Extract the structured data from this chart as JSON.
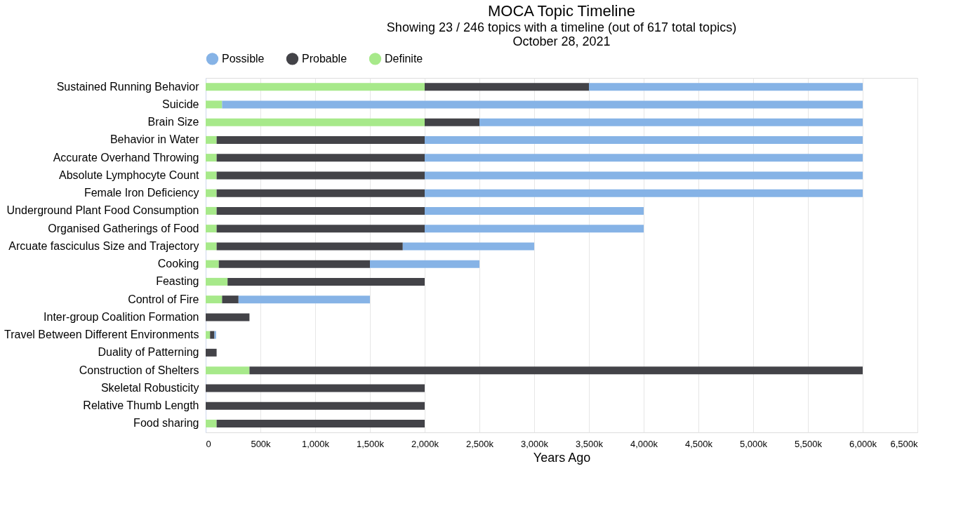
{
  "chart_data": {
    "type": "bar",
    "orientation": "horizontal",
    "stacked": true,
    "title": "MOCA Topic Timeline",
    "subtitle": "Showing 23 / 246 topics with a timeline (out of 617 total topics)\nOctober 28, 2021",
    "xlabel": "Years Ago",
    "categories": [
      "Sustained Running Behavior",
      "Suicide",
      "Brain Size",
      "Behavior in Water",
      "Accurate Overhand Throwing",
      "Absolute Lymphocyte Count",
      "Female Iron Deficiency",
      "Underground Plant Food Consumption",
      "Organised Gatherings of Food",
      "Arcuate fasciculus Size and Trajectory",
      "Cooking",
      "Feasting",
      "Control of Fire",
      "Inter-group Coalition Formation",
      "Travel Between Different Environments",
      "Duality of Patterning",
      "Construction of Shelters",
      "Skeletal Robusticity",
      "Relative Thumb Length",
      "Food sharing"
    ],
    "series": [
      {
        "name": "Definite",
        "color": "#a7e98a",
        "values": [
          2000000,
          150000,
          2000000,
          100000,
          100000,
          100000,
          100000,
          100000,
          100000,
          100000,
          120000,
          200000,
          150000,
          null,
          40000,
          null,
          400000,
          null,
          null,
          100000
        ]
      },
      {
        "name": "Probable",
        "color": "#434348",
        "values": [
          1500000,
          null,
          500000,
          1900000,
          1900000,
          1900000,
          1900000,
          1900000,
          1900000,
          1700000,
          1380000,
          1800000,
          150000,
          400000,
          40000,
          100000,
          5600000,
          2000000,
          2000000,
          1900000
        ]
      },
      {
        "name": "Possible",
        "color": "#86b3e6",
        "values": [
          2500000,
          5850000,
          3500000,
          4000000,
          4000000,
          4000000,
          4000000,
          2000000,
          2000000,
          1200000,
          1000000,
          null,
          1200000,
          null,
          15000,
          null,
          null,
          null,
          null,
          null
        ]
      }
    ],
    "xlim": [
      0,
      6500000
    ],
    "xticks": [
      0,
      {
        "value": 500000,
        "label": "500k"
      },
      {
        "value": 1000000,
        "label": "1,000k"
      },
      {
        "value": 1500000,
        "label": "1,500k"
      },
      {
        "value": 2000000,
        "label": "2,000k"
      },
      {
        "value": 2500000,
        "label": "2,500k"
      },
      {
        "value": 3000000,
        "label": "3,000k"
      },
      {
        "value": 3500000,
        "label": "3,500k"
      },
      {
        "value": 4000000,
        "label": "4,000k"
      },
      {
        "value": 4500000,
        "label": "4,500k"
      },
      {
        "value": 5000000,
        "label": "5,000k"
      },
      {
        "value": 5500000,
        "label": "5,500k"
      },
      {
        "value": 6000000,
        "label": "6,000k"
      },
      {
        "value": 6500000,
        "label": "6,500k"
      }
    ],
    "grid": "x",
    "legend": "top"
  }
}
